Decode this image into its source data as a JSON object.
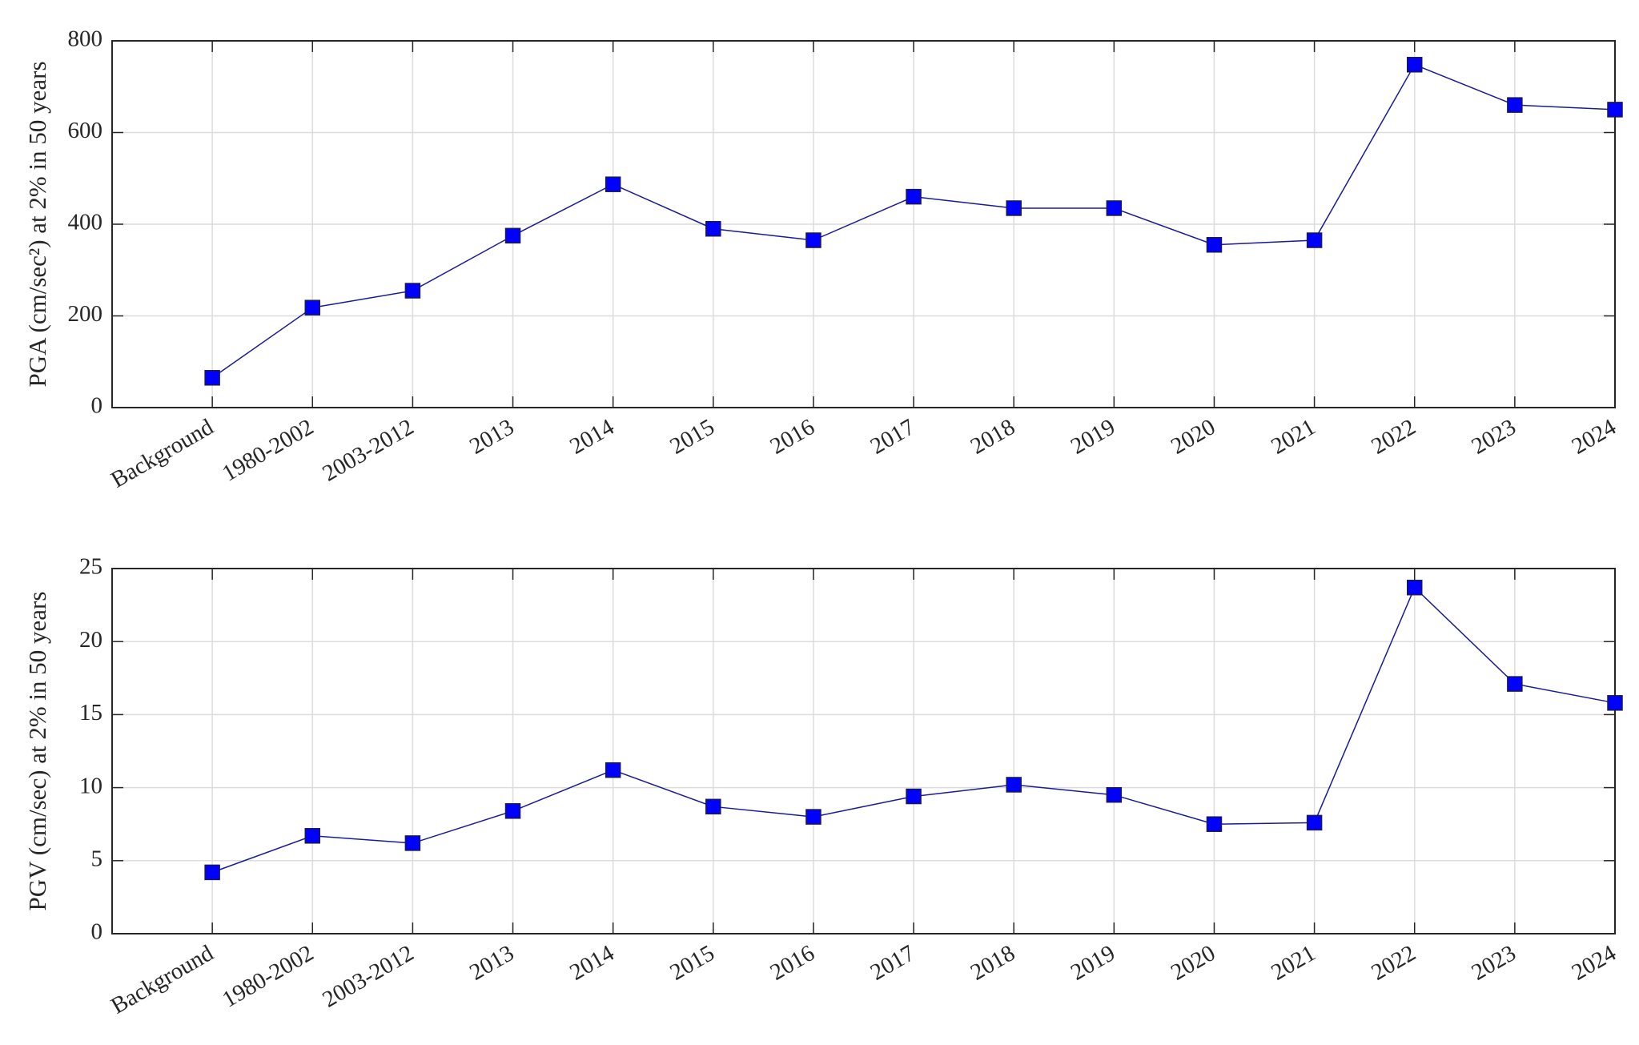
{
  "chart_data": [
    {
      "type": "line",
      "ylabel": "PGA (cm/sec²) at 2% in 50 years",
      "categories": [
        "Background",
        "1980-2002",
        "2003-2012",
        "2013",
        "2014",
        "2015",
        "2016",
        "2017",
        "2018",
        "2019",
        "2020",
        "2021",
        "2022",
        "2023",
        "2024"
      ],
      "values": [
        65,
        218,
        255,
        375,
        487,
        390,
        365,
        460,
        435,
        435,
        355,
        365,
        748,
        660,
        650
      ],
      "color": "#0000ff",
      "line_color": "#1a1a99",
      "ylim": [
        0,
        800
      ],
      "yticks": [
        0,
        200,
        400,
        600,
        800
      ],
      "grid": true
    },
    {
      "type": "line",
      "ylabel": "PGV (cm/sec) at 2% in 50 years",
      "categories": [
        "Background",
        "1980-2002",
        "2003-2012",
        "2013",
        "2014",
        "2015",
        "2016",
        "2017",
        "2018",
        "2019",
        "2020",
        "2021",
        "2022",
        "2023",
        "2024"
      ],
      "values": [
        4.2,
        6.7,
        6.2,
        8.4,
        11.2,
        8.7,
        8.0,
        9.4,
        10.2,
        9.5,
        7.5,
        7.6,
        23.7,
        17.1,
        15.8
      ],
      "color": "#0000ff",
      "line_color": "#1a1a99",
      "ylim": [
        0,
        25
      ],
      "yticks": [
        0,
        5,
        10,
        15,
        20,
        25
      ],
      "grid": true
    }
  ]
}
